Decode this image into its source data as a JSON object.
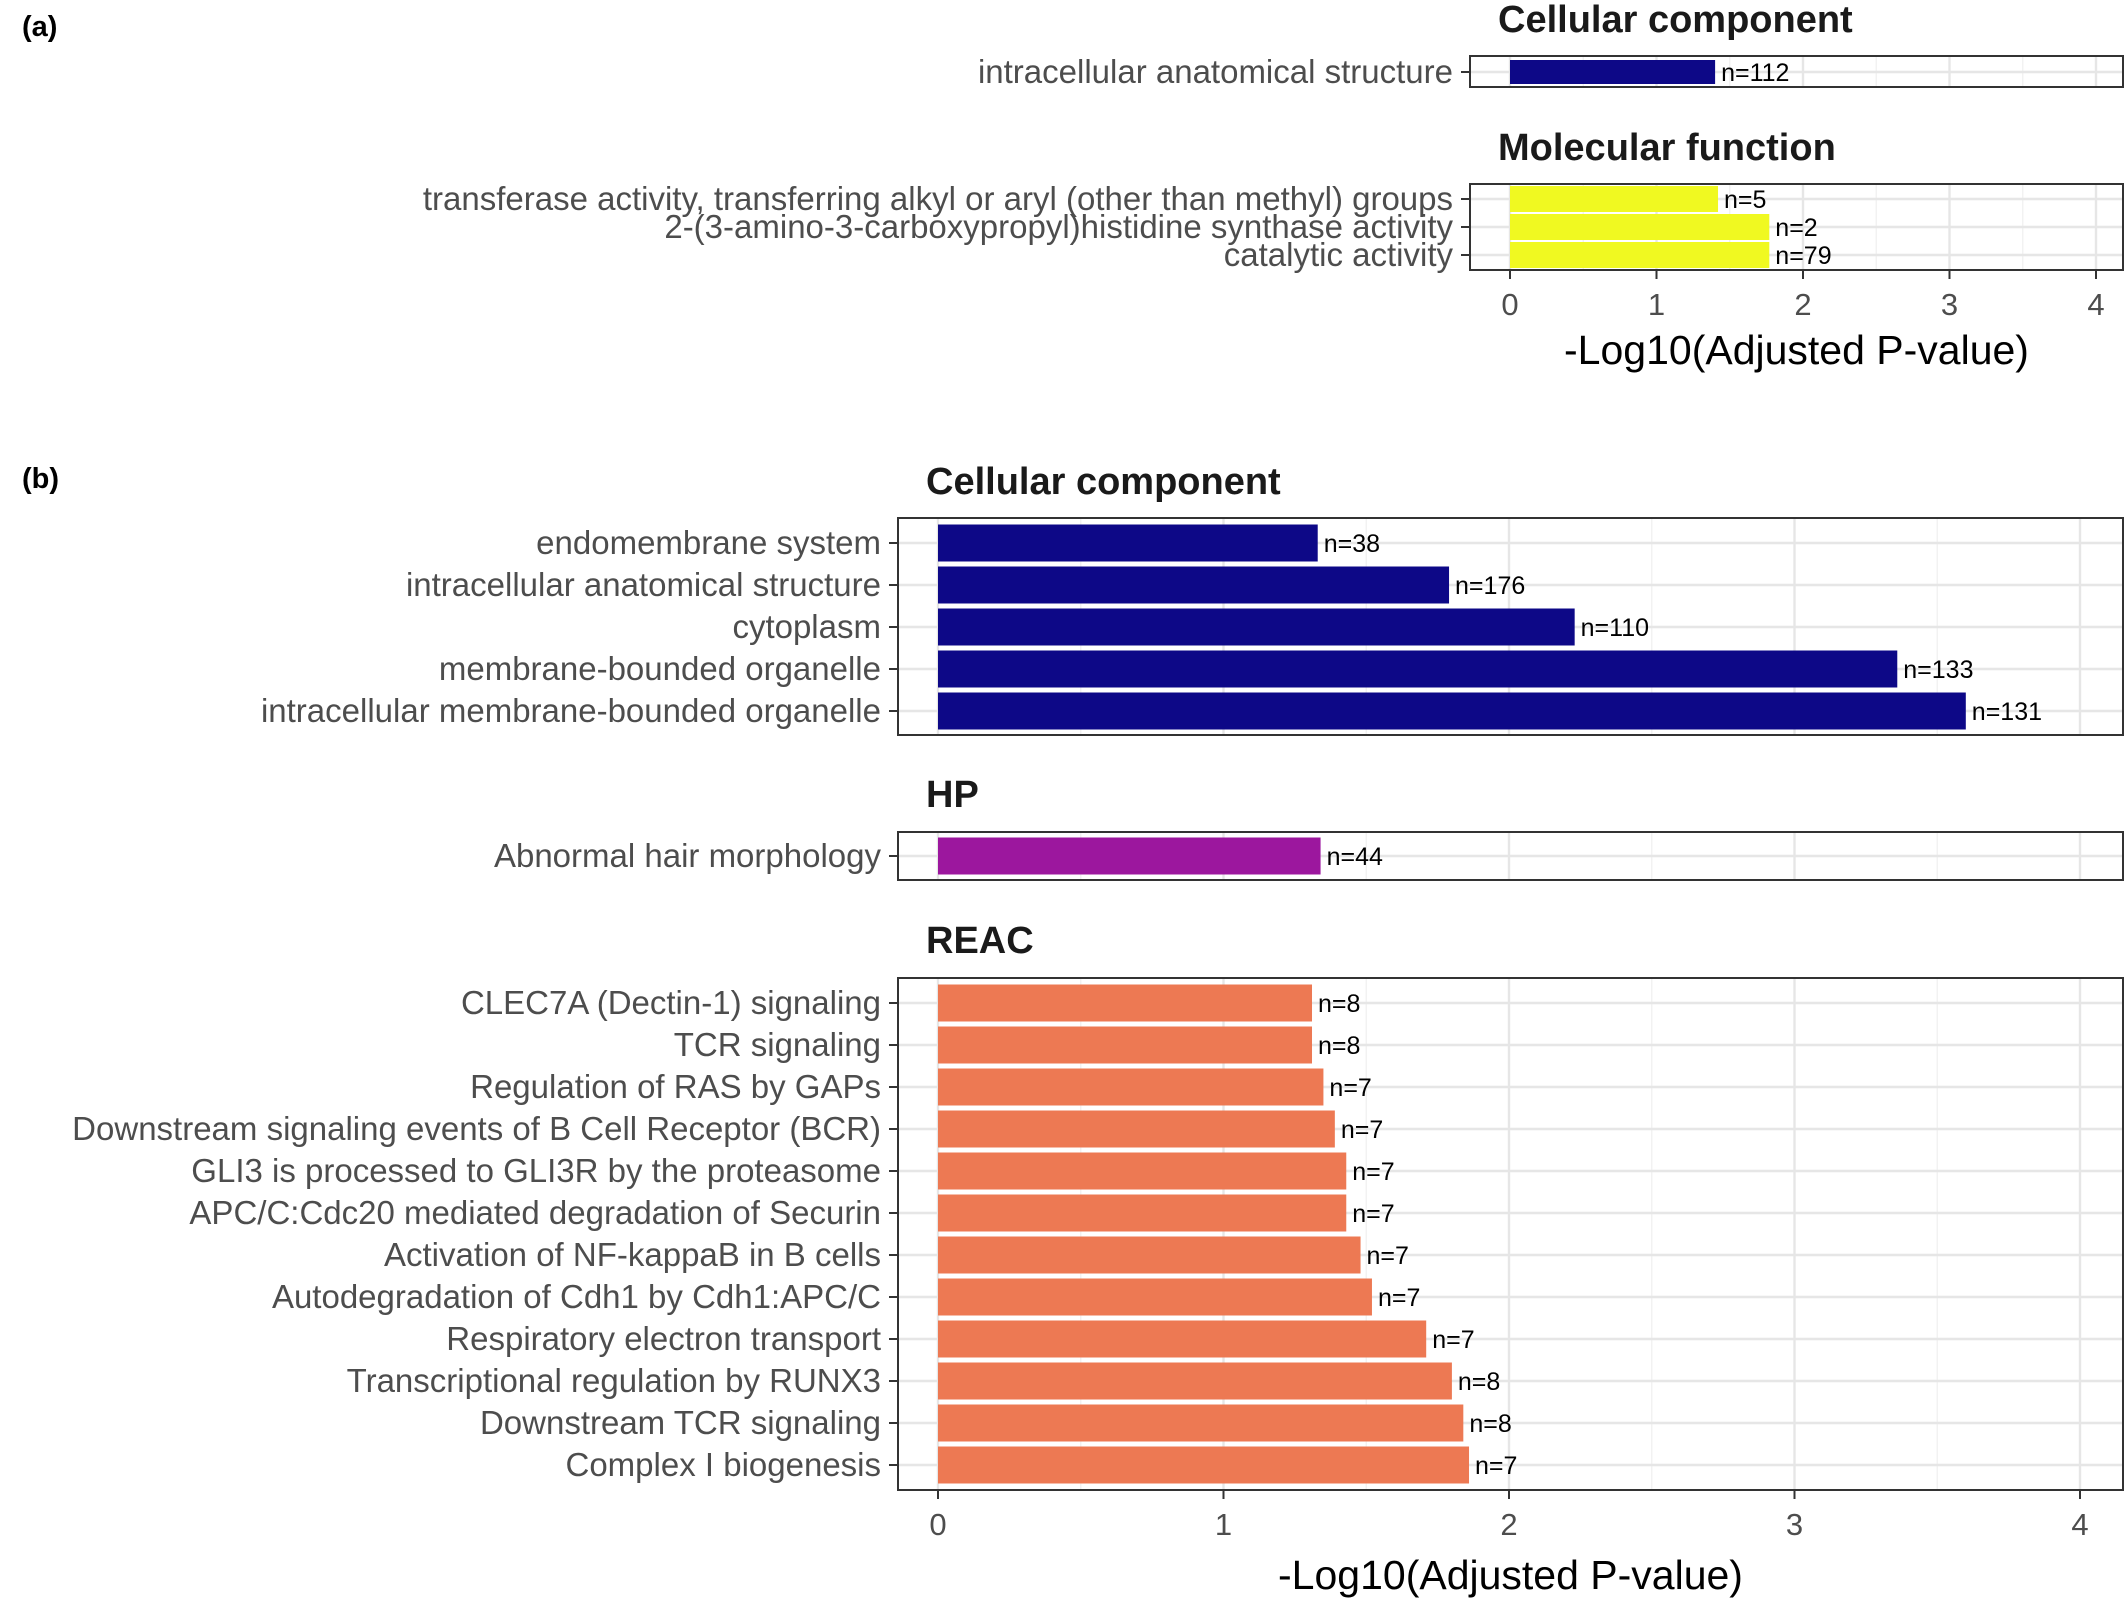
{
  "chart_data": [
    {
      "type": "bar",
      "orientation": "horizontal",
      "panel_label": "(a)",
      "xlabel": "-Log10(Adjusted P-value)",
      "xlim": [
        0,
        4.1
      ],
      "xticks": [
        "0",
        "1",
        "2",
        "3",
        "4"
      ],
      "grid": true,
      "facets": [
        {
          "title": "Cellular component",
          "color": "#0d0887",
          "categories": [
            "intracellular anatomical structure"
          ],
          "values": [
            1.4
          ],
          "counts": [
            "n=112"
          ]
        },
        {
          "title": "Molecular function",
          "color": "#f0f921",
          "categories": [
            "transferase activity, transferring alkyl or aryl (other than methyl) groups",
            "2-(3-amino-3-carboxypropyl)histidine synthase activity",
            "catalytic activity"
          ],
          "values": [
            1.42,
            1.77,
            1.77
          ],
          "counts": [
            "n=5",
            "n=2",
            "n=79"
          ]
        }
      ]
    },
    {
      "type": "bar",
      "orientation": "horizontal",
      "panel_label": "(b)",
      "xlabel": "-Log10(Adjusted P-value)",
      "xlim": [
        0,
        4.1
      ],
      "xticks": [
        "0",
        "1",
        "2",
        "3",
        "4"
      ],
      "grid": true,
      "facets": [
        {
          "title": "Cellular component",
          "color": "#0d0887",
          "categories": [
            "endomembrane system",
            "intracellular anatomical structure",
            "cytoplasm",
            "membrane-bounded organelle",
            "intracellular membrane-bounded organelle"
          ],
          "values": [
            1.33,
            1.79,
            2.23,
            3.36,
            3.6
          ],
          "counts": [
            "n=38",
            "n=176",
            "n=110",
            "n=133",
            "n=131"
          ]
        },
        {
          "title": "HP",
          "color": "#9c179e",
          "categories": [
            "Abnormal hair morphology"
          ],
          "values": [
            1.34
          ],
          "counts": [
            "n=44"
          ]
        },
        {
          "title": "REAC",
          "color": "#ed7953",
          "categories": [
            "CLEC7A (Dectin-1) signaling",
            "TCR signaling",
            "Regulation of RAS by GAPs",
            "Downstream signaling events of B Cell Receptor (BCR)",
            "GLI3 is processed to GLI3R by the proteasome",
            "APC/C:Cdc20 mediated degradation of Securin",
            "Activation of NF-kappaB in B cells",
            "Autodegradation of Cdh1 by Cdh1:APC/C",
            "Respiratory electron transport",
            "Transcriptional regulation by RUNX3",
            "Downstream TCR signaling",
            "Complex I biogenesis"
          ],
          "values": [
            1.31,
            1.31,
            1.35,
            1.39,
            1.43,
            1.43,
            1.48,
            1.52,
            1.71,
            1.8,
            1.84,
            1.86
          ],
          "counts": [
            "n=8",
            "n=8",
            "n=7",
            "n=7",
            "n=7",
            "n=7",
            "n=7",
            "n=7",
            "n=7",
            "n=8",
            "n=8",
            "n=7"
          ]
        }
      ]
    }
  ]
}
